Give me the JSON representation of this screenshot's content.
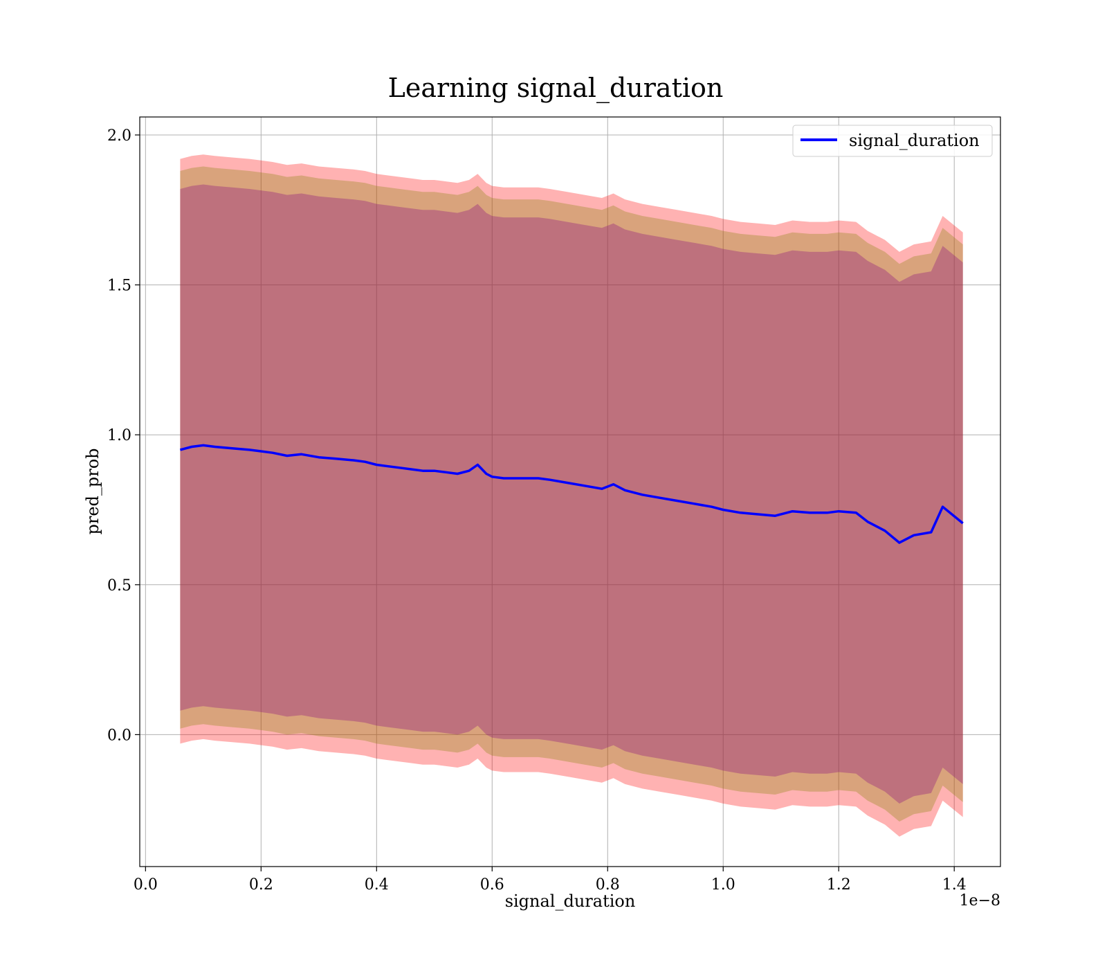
{
  "chart_data": {
    "type": "line",
    "title": "Learning signal_duration",
    "xlabel": "signal_duration",
    "ylabel": "pred_prob",
    "x_offset_label": "1e−8",
    "xlim": [
      -0.01,
      1.48
    ],
    "ylim": [
      -0.44,
      2.06
    ],
    "xticks": [
      0.0,
      0.2,
      0.4,
      0.6,
      0.8,
      1.0,
      1.2,
      1.4
    ],
    "xtick_labels": [
      "0.0",
      "0.2",
      "0.4",
      "0.6",
      "0.8",
      "1.0",
      "1.2",
      "1.4"
    ],
    "yticks": [
      0.0,
      0.5,
      1.0,
      1.5,
      2.0
    ],
    "ytick_labels": [
      "0.0",
      "0.5",
      "1.0",
      "1.5",
      "2.0"
    ],
    "grid": true,
    "legend": {
      "position": "top-right",
      "entries": [
        "signal_duration"
      ]
    },
    "colors": {
      "line": "#0000ff",
      "band_outer": "#ff0000",
      "band_middle": "#808000",
      "band_inner": "#800080"
    },
    "x": [
      0.06,
      0.08,
      0.1,
      0.12,
      0.15,
      0.18,
      0.2,
      0.22,
      0.245,
      0.27,
      0.3,
      0.33,
      0.36,
      0.38,
      0.4,
      0.42,
      0.44,
      0.46,
      0.48,
      0.5,
      0.52,
      0.54,
      0.56,
      0.575,
      0.59,
      0.6,
      0.62,
      0.65,
      0.68,
      0.7,
      0.73,
      0.76,
      0.79,
      0.81,
      0.83,
      0.86,
      0.89,
      0.92,
      0.95,
      0.98,
      1.0,
      1.03,
      1.06,
      1.09,
      1.12,
      1.15,
      1.18,
      1.2,
      1.23,
      1.25,
      1.28,
      1.305,
      1.33,
      1.36,
      1.38,
      1.415
    ],
    "series": [
      {
        "name": "signal_duration",
        "y": [
          0.95,
          0.96,
          0.965,
          0.96,
          0.955,
          0.95,
          0.945,
          0.94,
          0.93,
          0.935,
          0.925,
          0.92,
          0.915,
          0.91,
          0.9,
          0.895,
          0.89,
          0.885,
          0.88,
          0.88,
          0.875,
          0.87,
          0.88,
          0.9,
          0.87,
          0.86,
          0.855,
          0.855,
          0.855,
          0.85,
          0.84,
          0.83,
          0.82,
          0.835,
          0.815,
          0.8,
          0.79,
          0.78,
          0.77,
          0.76,
          0.75,
          0.74,
          0.735,
          0.73,
          0.745,
          0.74,
          0.74,
          0.745,
          0.74,
          0.71,
          0.68,
          0.64,
          0.665,
          0.675,
          0.76,
          0.705
        ]
      }
    ],
    "bands": [
      {
        "color": "band_outer",
        "low_offset": -0.98,
        "high_offset": 0.97
      },
      {
        "color": "band_middle",
        "low_offset": -0.93,
        "high_offset": 0.93
      },
      {
        "color": "band_inner",
        "low_offset": -0.87,
        "high_offset": 0.87
      }
    ]
  }
}
